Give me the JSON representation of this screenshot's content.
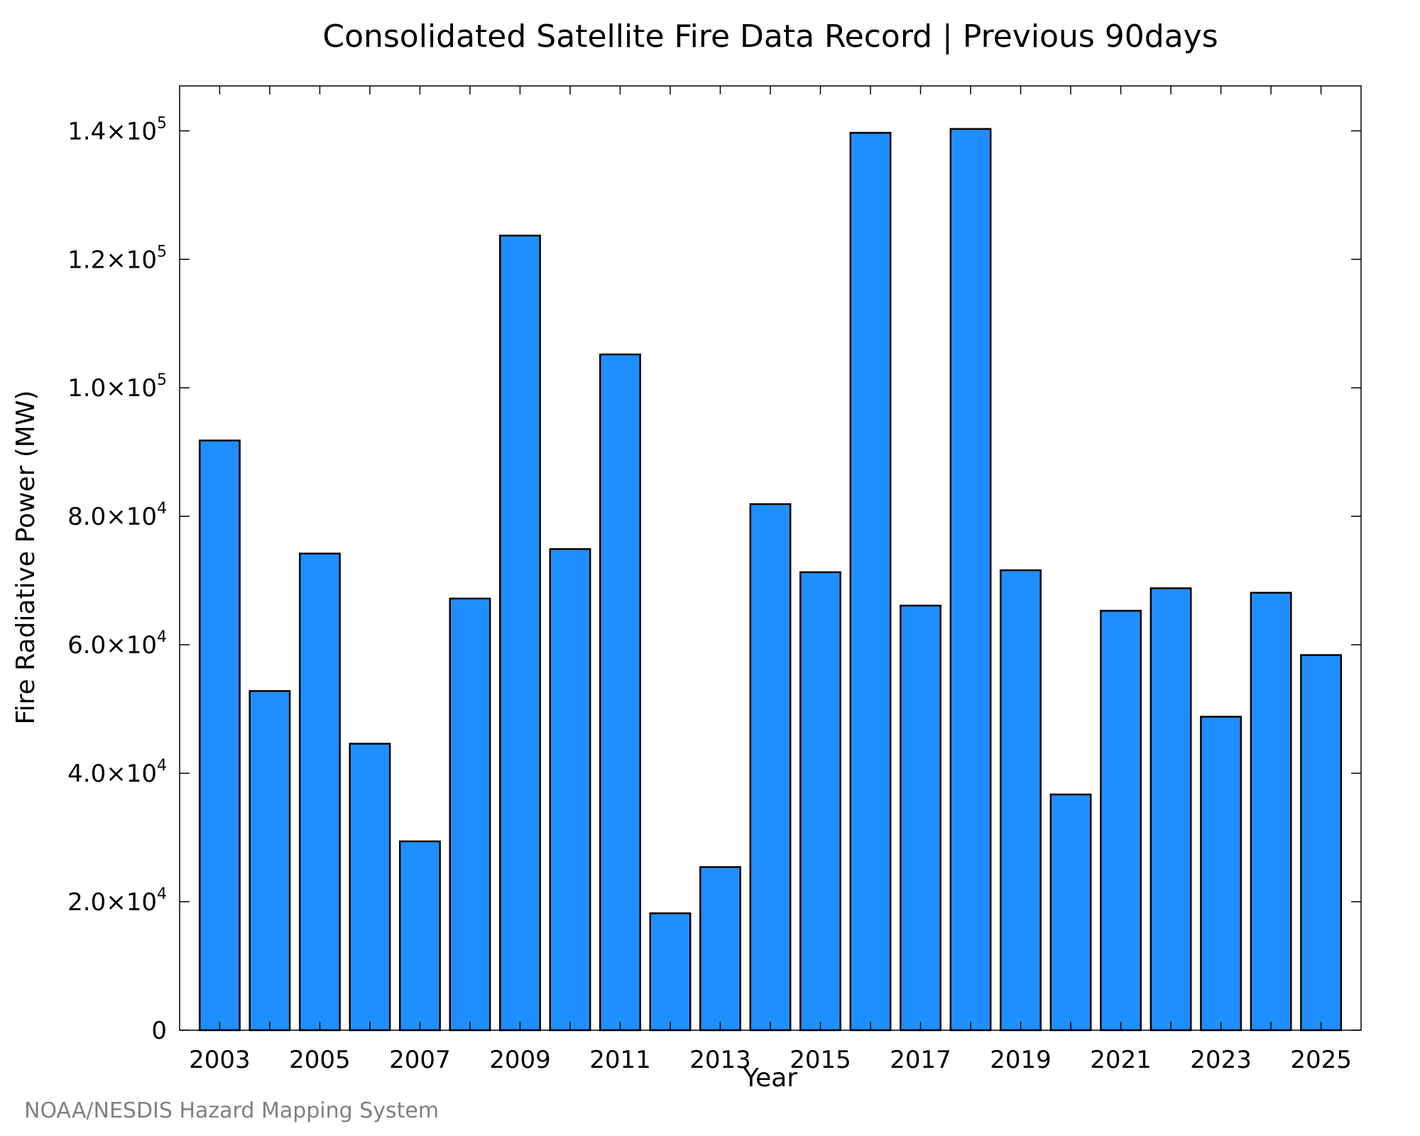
{
  "chart_data": {
    "type": "bar",
    "title": "Consolidated Satellite Fire Data Record | Previous 90days",
    "xlabel": "Year",
    "ylabel": "Fire Radiative Power (MW)",
    "categories": [
      "2003",
      "2004",
      "2005",
      "2006",
      "2007",
      "2008",
      "2009",
      "2010",
      "2011",
      "2012",
      "2013",
      "2014",
      "2015",
      "2016",
      "2017",
      "2018",
      "2019",
      "2020",
      "2021",
      "2022",
      "2023",
      "2024",
      "2025"
    ],
    "values": [
      91800,
      52800,
      74200,
      44600,
      29400,
      67200,
      123700,
      74900,
      105200,
      18200,
      25400,
      81900,
      71300,
      139700,
      66100,
      140300,
      71600,
      36700,
      65300,
      68800,
      48800,
      68100,
      58400
    ],
    "ylim": [
      0,
      147000
    ],
    "yticks": [
      {
        "value": 0,
        "mantissa": "0",
        "exponent": ""
      },
      {
        "value": 20000,
        "mantissa": "2.0×10",
        "exponent": "4"
      },
      {
        "value": 40000,
        "mantissa": "4.0×10",
        "exponent": "4"
      },
      {
        "value": 60000,
        "mantissa": "6.0×10",
        "exponent": "4"
      },
      {
        "value": 80000,
        "mantissa": "8.0×10",
        "exponent": "4"
      },
      {
        "value": 100000,
        "mantissa": "1.0×10",
        "exponent": "5"
      },
      {
        "value": 120000,
        "mantissa": "1.2×10",
        "exponent": "5"
      },
      {
        "value": 140000,
        "mantissa": "1.4×10",
        "exponent": "5"
      }
    ],
    "xtick_labels": [
      "2003",
      "2005",
      "2007",
      "2009",
      "2011",
      "2013",
      "2015",
      "2017",
      "2019",
      "2021",
      "2023",
      "2025"
    ],
    "bar_color": "#1f8fff",
    "bar_edge_color": "#000000",
    "grid": false,
    "legend": "none"
  },
  "credit": "NOAA/NESDIS Hazard Mapping System"
}
